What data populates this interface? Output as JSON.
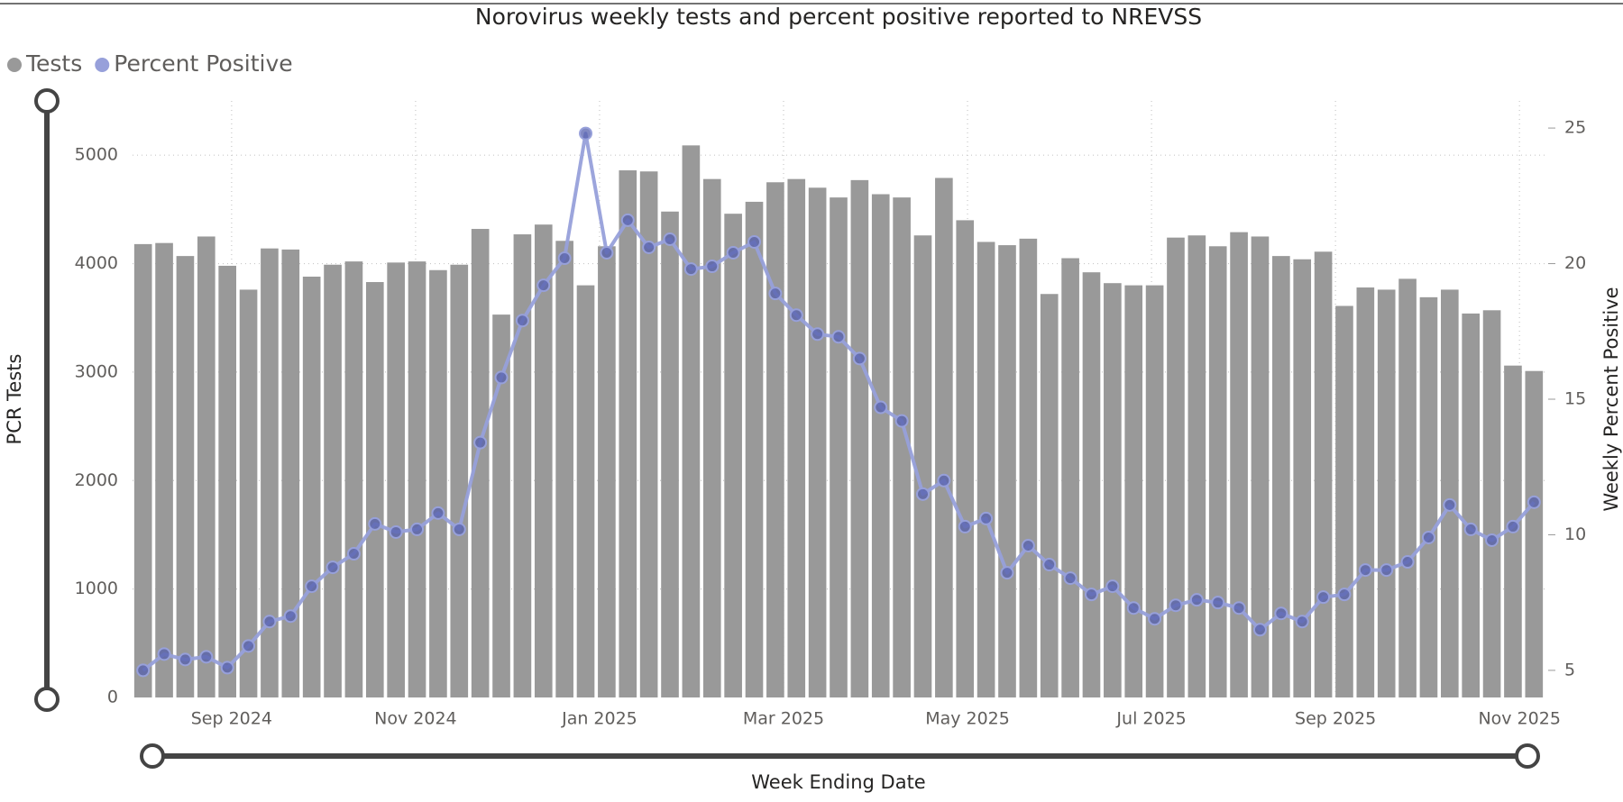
{
  "chart_data": {
    "type": "combo",
    "title": "Norovirus weekly tests and percent positive reported to NREVSS",
    "x_label": "Week Ending Date",
    "y_label": "PCR Tests",
    "y2_label": "Weekly Percent Positive",
    "categories": [
      null,
      null,
      null,
      null,
      null,
      null,
      null,
      null,
      null,
      null,
      null,
      null,
      null,
      null,
      null,
      null,
      null,
      null,
      null,
      null,
      null,
      null,
      null,
      null,
      null,
      null,
      null,
      null,
      null,
      null,
      null,
      null,
      null,
      null,
      null,
      null,
      null,
      null,
      null,
      null,
      null,
      null,
      null,
      null,
      null,
      null,
      null,
      null,
      null,
      null,
      null,
      null,
      null,
      null,
      null,
      null,
      null,
      null,
      null,
      null,
      null,
      null,
      null,
      null,
      null,
      null,
      null
    ],
    "xticks": [
      "Sep 2024",
      "Nov 2024",
      "Jan 2025",
      "Mar 2025",
      "May 2025",
      "Jul 2025",
      "Sep 2025",
      "Nov 2025"
    ],
    "ylim": [
      0,
      5500
    ],
    "yticks": [
      0,
      1000,
      2000,
      3000,
      4000,
      5000
    ],
    "y2lim": [
      4,
      26
    ],
    "y2ticks": [
      5,
      10,
      15,
      20,
      25
    ],
    "grid": true,
    "series": [
      {
        "name": "Tests",
        "type": "bar",
        "color": "#999999",
        "values": [
          4180,
          4190,
          4070,
          4250,
          3980,
          3760,
          4140,
          4130,
          3880,
          3990,
          4020,
          3830,
          4010,
          4020,
          3940,
          3990,
          4320,
          3530,
          4270,
          4360,
          4210,
          3800,
          4160,
          4860,
          4850,
          4480,
          5090,
          4780,
          4460,
          4570,
          4750,
          4780,
          4700,
          4610,
          4770,
          4640,
          4610,
          4260,
          4790,
          4400,
          4200,
          4170,
          4230,
          3720,
          4050,
          3920,
          3820,
          3800,
          3800,
          4240,
          4260,
          4160,
          4290,
          4250,
          4070,
          4040,
          4110,
          3610,
          3780,
          3760,
          3860,
          3690,
          3760,
          3540,
          3570,
          3060,
          3010
        ]
      },
      {
        "name": "Percent Positive",
        "type": "line",
        "axis": "y2",
        "color": "#97a0da",
        "values": [
          5.0,
          5.6,
          5.4,
          5.5,
          5.1,
          5.9,
          6.8,
          7.0,
          8.1,
          8.8,
          9.3,
          10.4,
          10.1,
          10.2,
          10.8,
          10.2,
          13.4,
          15.8,
          17.9,
          19.2,
          20.2,
          24.8,
          20.4,
          21.6,
          20.6,
          20.9,
          19.8,
          19.9,
          20.4,
          20.8,
          18.9,
          18.1,
          17.4,
          17.3,
          16.5,
          14.7,
          14.2,
          11.5,
          12.0,
          10.3,
          10.6,
          8.6,
          9.6,
          8.9,
          8.4,
          7.8,
          8.1,
          7.3,
          6.9,
          7.4,
          7.6,
          7.5,
          7.3,
          6.5,
          7.1,
          6.8,
          7.7,
          7.8,
          8.7,
          8.7,
          9.0,
          9.9,
          11.1,
          10.2,
          9.8,
          10.3,
          11.2
        ]
      }
    ]
  }
}
